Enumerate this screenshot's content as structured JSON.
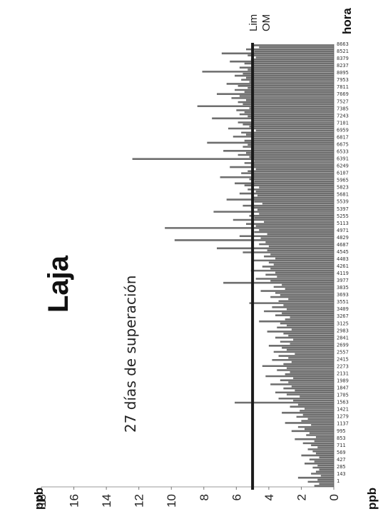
{
  "chart_data": {
    "type": "bar",
    "title": "Laja",
    "annotation": "27 días de superación",
    "ylabel": "ppb",
    "ylabel_bottom": "ppb",
    "xlabel": "hora",
    "ylim": [
      0,
      18
    ],
    "xlim": [
      1,
      8663
    ],
    "y_ticks": [
      0,
      2,
      4,
      6,
      8,
      10,
      12,
      14,
      16,
      18
    ],
    "x_tick_labels": [
      "1",
      "143",
      "285",
      "427",
      "569",
      "711",
      "853",
      "995",
      "1137",
      "1279",
      "1421",
      "1563",
      "1705",
      "1847",
      "1989",
      "2131",
      "2273",
      "2415",
      "2557",
      "2699",
      "2841",
      "2983",
      "3125",
      "3267",
      "3409",
      "3551",
      "3693",
      "3835",
      "3977",
      "4119",
      "4261",
      "4403",
      "4545",
      "4687",
      "4829",
      "4971",
      "5113",
      "5255",
      "5397",
      "5539",
      "5681",
      "5823",
      "5965",
      "6107",
      "6249",
      "6391",
      "6533",
      "6675",
      "6817",
      "6959",
      "7101",
      "7243",
      "7385",
      "7527",
      "7669",
      "7811",
      "7953",
      "8095",
      "8237",
      "8379",
      "8521",
      "8663"
    ],
    "reference_line": {
      "value": 5,
      "label_lines": [
        "Lim",
        "OM"
      ]
    },
    "bar_color": "#555555",
    "reference_color": "#1a1a1a",
    "series": [
      {
        "values": [
          1.2,
          0.9,
          1.6,
          1.0,
          2.2,
          0.8,
          1.4,
          1.1,
          0.9,
          1.3,
          1.0,
          1.8,
          1.2,
          1.5,
          0.9,
          2.0,
          1.1,
          1.3,
          1.6,
          1.0,
          1.4,
          1.9,
          1.2,
          2.4,
          1.1,
          1.7,
          1.5,
          2.6,
          1.8,
          2.2,
          1.4,
          3.0,
          2.0,
          1.6,
          2.3,
          1.9,
          3.2,
          2.1,
          1.8,
          2.7,
          2.2,
          6.1,
          2.5,
          3.4,
          2.1,
          2.9,
          3.6,
          2.4,
          3.1,
          2.6,
          3.9,
          2.8,
          3.3,
          2.5,
          4.2,
          3.0,
          2.7,
          3.5,
          2.9,
          4.4,
          3.1,
          2.6,
          3.8,
          2.8,
          3.4,
          2.4,
          3.7,
          2.9,
          3.2,
          4.0,
          2.7,
          3.3,
          2.5,
          3.6,
          2.8,
          3.1,
          4.1,
          2.6,
          3.5,
          2.9,
          3.3,
          4.6,
          3.0,
          2.7,
          3.6,
          3.2,
          4.3,
          2.9,
          3.8,
          3.1,
          5.2,
          3.4,
          2.8,
          3.9,
          3.3,
          3.6,
          4.5,
          3.0,
          3.7,
          3.2,
          6.8,
          3.9,
          4.8,
          3.5,
          4.2,
          3.6,
          5.1,
          3.9,
          4.4,
          3.7,
          4.0,
          5.0,
          3.6,
          4.3,
          3.9,
          5.6,
          4.1,
          7.2,
          4.0,
          4.6,
          4.2,
          9.8,
          4.5,
          5.8,
          4.1,
          4.9,
          4.6,
          10.4,
          4.8,
          5.4,
          4.3,
          6.2,
          4.9,
          5.2,
          4.6,
          7.4,
          4.7,
          5.1,
          5.6,
          4.4,
          4.9,
          6.6,
          5.0,
          4.7,
          5.8,
          4.8,
          5.3,
          4.6,
          5.5,
          6.1,
          4.9,
          5.2,
          7.0,
          5.0,
          5.7,
          5.3,
          4.8,
          6.4,
          5.1,
          5.5,
          4.9,
          12.4,
          5.2,
          5.9,
          5.4,
          6.8,
          5.1,
          5.6,
          5.3,
          7.8,
          5.5,
          5.0,
          6.2,
          5.4,
          5.7,
          4.8,
          6.5,
          5.2,
          5.6,
          5.9,
          5.0,
          7.5,
          5.3,
          5.8,
          5.5,
          6.0,
          5.2,
          8.4,
          5.6,
          5.9,
          5.4,
          6.3,
          5.8,
          7.2,
          5.5,
          6.1,
          5.3,
          5.9,
          6.6,
          5.2,
          5.7,
          5.4,
          6.1,
          5.6,
          8.1,
          5.3,
          5.8,
          5.0,
          5.5,
          6.4,
          5.1,
          4.8,
          5.3,
          6.9,
          4.9,
          5.4,
          4.6,
          5.0
        ]
      }
    ]
  }
}
